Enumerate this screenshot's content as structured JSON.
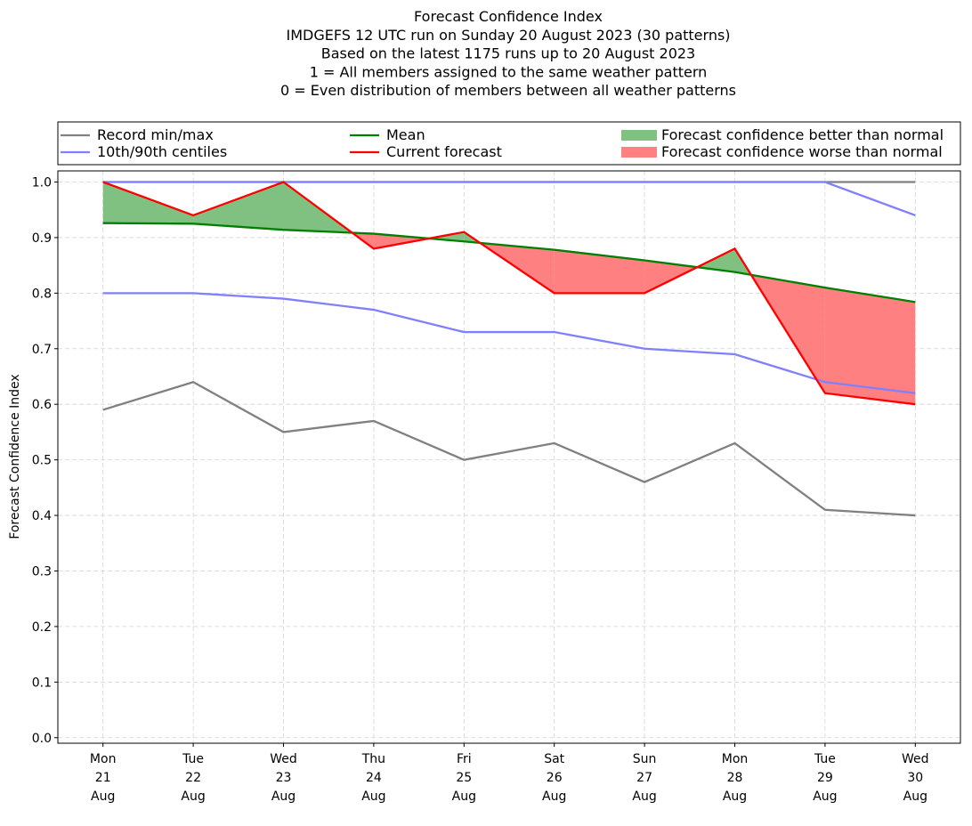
{
  "chart_data": {
    "type": "line",
    "title_lines": [
      "Forecast Confidence Index",
      "IMDGEFS 12 UTC run on Sunday 20 August 2023 (30 patterns)",
      "Based on the latest 1175 runs up to 20 August 2023",
      "1 = All members assigned to the same weather pattern",
      "0 = Even distribution of members between all weather patterns"
    ],
    "ylabel": "Forecast Confidence Index",
    "xlabel": "",
    "ylim": [
      -0.01,
      1.02
    ],
    "grid": true,
    "yticks": [
      0.0,
      0.1,
      0.2,
      0.3,
      0.4,
      0.5,
      0.6,
      0.7,
      0.8,
      0.9,
      1.0
    ],
    "categories": [
      [
        "Mon",
        "21",
        "Aug"
      ],
      [
        "Tue",
        "22",
        "Aug"
      ],
      [
        "Wed",
        "23",
        "Aug"
      ],
      [
        "Thu",
        "24",
        "Aug"
      ],
      [
        "Fri",
        "25",
        "Aug"
      ],
      [
        "Sat",
        "26",
        "Aug"
      ],
      [
        "Sun",
        "27",
        "Aug"
      ],
      [
        "Mon",
        "28",
        "Aug"
      ],
      [
        "Tue",
        "29",
        "Aug"
      ],
      [
        "Wed",
        "30",
        "Aug"
      ]
    ],
    "series": [
      {
        "name": "Record max",
        "values": [
          1.0,
          1.0,
          1.0,
          1.0,
          1.0,
          1.0,
          1.0,
          1.0,
          1.0,
          1.0
        ],
        "color": "#808080"
      },
      {
        "name": "Record min",
        "values": [
          0.59,
          0.64,
          0.55,
          0.57,
          0.5,
          0.53,
          0.46,
          0.53,
          0.41,
          0.4
        ],
        "color": "#808080"
      },
      {
        "name": "90th centile",
        "values": [
          1.0,
          1.0,
          1.0,
          1.0,
          1.0,
          1.0,
          1.0,
          1.0,
          1.0,
          0.94
        ],
        "color": "#8080ff"
      },
      {
        "name": "10th centile",
        "values": [
          0.8,
          0.8,
          0.79,
          0.77,
          0.73,
          0.73,
          0.7,
          0.69,
          0.64,
          0.62
        ],
        "color": "#8080ff"
      },
      {
        "name": "Mean",
        "values": [
          0.926,
          0.925,
          0.914,
          0.907,
          0.893,
          0.878,
          0.859,
          0.838,
          0.81,
          0.784
        ],
        "color": "#008000"
      },
      {
        "name": "Current forecast",
        "values": [
          1.0,
          0.94,
          1.0,
          0.88,
          0.91,
          0.8,
          0.8,
          0.88,
          0.62,
          0.6
        ],
        "color": "#ff0000"
      }
    ],
    "fill_colors": {
      "better": "#80c080",
      "worse": "#ff8080"
    },
    "legend": {
      "placement": "top",
      "entries": [
        {
          "label": "Record min/max",
          "kind": "line",
          "color": "#808080"
        },
        {
          "label": "10th/90th centiles",
          "kind": "line",
          "color": "#8080ff"
        },
        {
          "label": "Mean",
          "kind": "line",
          "color": "#008000"
        },
        {
          "label": "Current forecast",
          "kind": "line",
          "color": "#ff0000"
        },
        {
          "label": "Forecast confidence better than normal",
          "kind": "patch",
          "color": "#80c080"
        },
        {
          "label": "Forecast confidence worse than normal",
          "kind": "patch",
          "color": "#ff8080"
        }
      ]
    }
  }
}
